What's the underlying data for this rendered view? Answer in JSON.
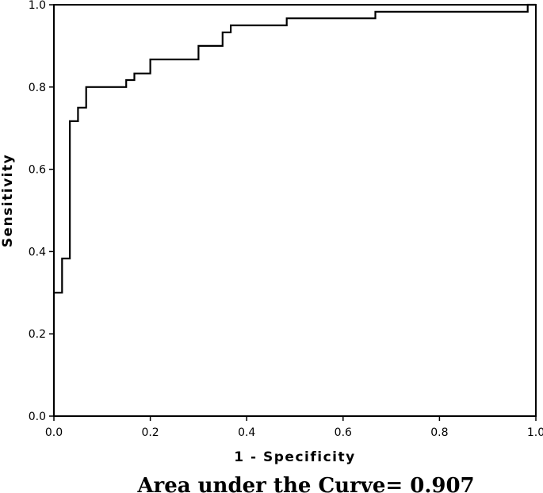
{
  "chart_data": {
    "type": "line",
    "xlabel": "1 - Specificity",
    "ylabel": "Sensitivity",
    "xlim": [
      0.0,
      1.0
    ],
    "ylim": [
      0.0,
      1.0
    ],
    "x_ticks": [
      "0.0",
      "0.2",
      "0.4",
      "0.6",
      "0.8",
      "1.0"
    ],
    "y_ticks": [
      "0.0",
      "0.2",
      "0.4",
      "0.6",
      "0.8",
      "1.0"
    ],
    "grid": false,
    "series": [
      {
        "points": [
          [
            0.0,
            0.0
          ],
          [
            0.0,
            0.3
          ],
          [
            0.017,
            0.3
          ],
          [
            0.017,
            0.383
          ],
          [
            0.033,
            0.383
          ],
          [
            0.033,
            0.717
          ],
          [
            0.05,
            0.717
          ],
          [
            0.05,
            0.75
          ],
          [
            0.067,
            0.75
          ],
          [
            0.067,
            0.8
          ],
          [
            0.15,
            0.8
          ],
          [
            0.15,
            0.817
          ],
          [
            0.167,
            0.817
          ],
          [
            0.167,
            0.833
          ],
          [
            0.2,
            0.833
          ],
          [
            0.2,
            0.867
          ],
          [
            0.3,
            0.867
          ],
          [
            0.3,
            0.9
          ],
          [
            0.35,
            0.9
          ],
          [
            0.35,
            0.933
          ],
          [
            0.367,
            0.933
          ],
          [
            0.367,
            0.95
          ],
          [
            0.483,
            0.95
          ],
          [
            0.483,
            0.967
          ],
          [
            0.667,
            0.967
          ],
          [
            0.667,
            0.983
          ],
          [
            0.983,
            0.983
          ],
          [
            0.983,
            1.0
          ],
          [
            1.0,
            1.0
          ]
        ],
        "color": "#000000"
      }
    ]
  },
  "caption": "Area under the Curve= 0.907"
}
